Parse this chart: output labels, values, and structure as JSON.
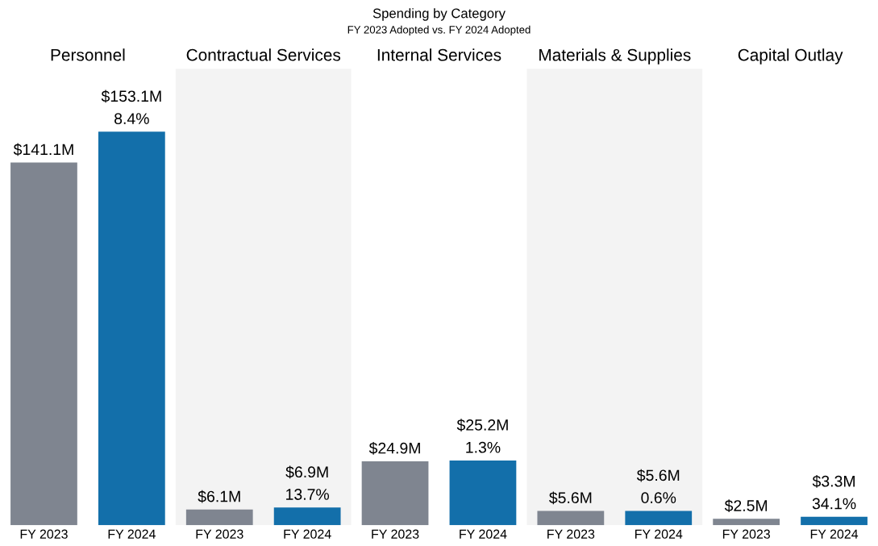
{
  "chart_data": {
    "type": "bar",
    "title": "Spending by Category",
    "subtitle": "FY 2023 Adopted vs. FY 2024 Adopted",
    "categories": [
      "FY 2023",
      "FY 2024",
      "FY 2023",
      "FY 2024",
      "FY 2023",
      "FY 2024",
      "FY 2023",
      "FY 2024",
      "FY 2023",
      "FY 2024"
    ],
    "values": [
      141.1,
      153.1,
      6.1,
      6.9,
      24.9,
      25.2,
      5.6,
      5.6,
      2.5,
      3.3
    ],
    "colors": [
      "#7f8590",
      "#136faa",
      "#7f8590",
      "#136faa",
      "#7f8590",
      "#136faa",
      "#7f8590",
      "#136faa",
      "#7f8590",
      "#136faa"
    ],
    "value_labels": [
      "$141.1M",
      "$153.1M",
      "$6.1M",
      "$6.9M",
      "$24.9M",
      "$25.2M",
      "$5.6M",
      "$5.6M",
      "$2.5M",
      "$3.3M"
    ],
    "annotations": [
      "Personnel",
      "Contractual Services",
      "Internal Services",
      "Materials & Supplies",
      "Capital Outlay",
      "8.4%",
      "13.7%",
      "1.3%",
      "0.6%",
      "34.1%"
    ],
    "tick_labels": "x",
    "grid": false,
    "legend": false
  }
}
